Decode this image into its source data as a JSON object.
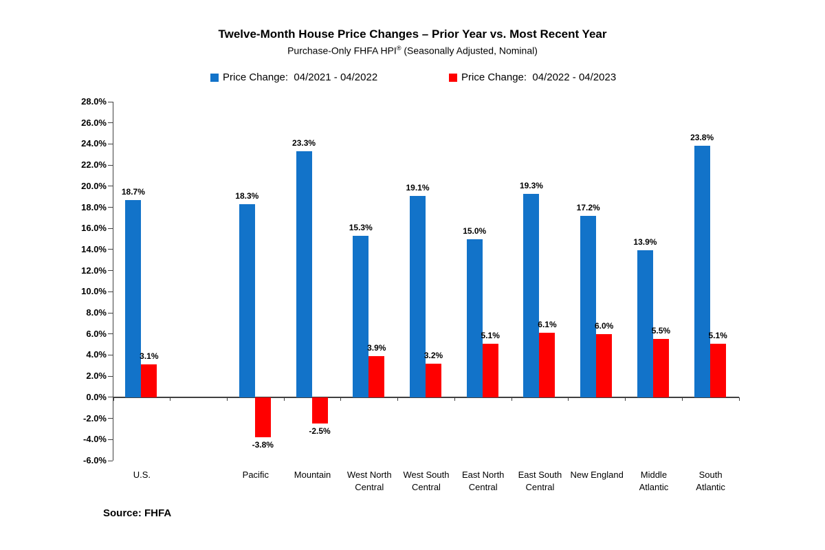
{
  "title": "Twelve-Month House Price Changes – Prior Year vs. Most Recent Year",
  "subtitle_parts": {
    "pre": "Purchase-Only FHFA HPI",
    "sup": "®",
    "post": " (Seasonally Adjusted, Nominal)"
  },
  "source_note": "Source: FHFA",
  "colors": {
    "series_prior": "#1273C9",
    "series_recent": "#FF0000",
    "axis": "#3f3f3f",
    "text": "#000000"
  },
  "chart_data": {
    "type": "bar",
    "title": "Twelve-Month House Price Changes – Prior Year vs. Most Recent Year",
    "subtitle": "Purchase-Only FHFA HPI® (Seasonally Adjusted, Nominal)",
    "categories": [
      "U.S.",
      "Pacific",
      "Mountain",
      "West North Central",
      "West South Central",
      "East North Central",
      "East South Central",
      "New England",
      "Middle Atlantic",
      "South Atlantic"
    ],
    "series": [
      {
        "name": "Price Change:  04/2021 - 04/2022",
        "color": "#1273C9",
        "values": [
          18.7,
          18.3,
          23.3,
          15.3,
          19.1,
          15.0,
          19.3,
          17.2,
          13.9,
          23.8
        ]
      },
      {
        "name": "Price Change:  04/2022 - 04/2023",
        "color": "#FF0000",
        "values": [
          3.1,
          -3.8,
          -2.5,
          3.9,
          3.2,
          5.1,
          6.1,
          6.0,
          5.5,
          5.1
        ]
      }
    ],
    "xlabel": "",
    "ylabel": "",
    "ylim": [
      -6,
      28
    ],
    "ytick_step": 2,
    "ytick_format": "0.0%",
    "value_labels": true,
    "value_label_format": "0.0%",
    "grid": false,
    "legend_position": "top",
    "layout": {
      "slots": 11,
      "category_slot_indices": [
        0,
        2,
        3,
        4,
        5,
        6,
        7,
        8,
        9,
        10
      ],
      "two_line_categories": [
        3,
        4,
        5,
        6,
        8,
        9
      ]
    },
    "source": "Source: FHFA"
  }
}
